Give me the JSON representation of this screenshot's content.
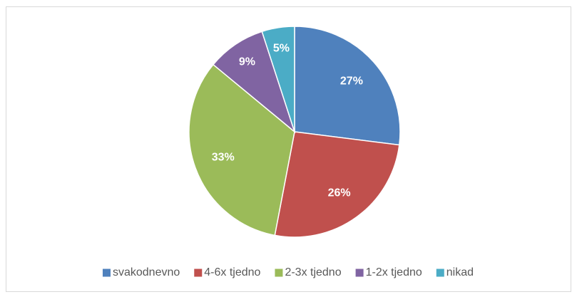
{
  "chart_data": {
    "type": "pie",
    "categories": [
      "svakodnevno",
      "4-6x tjedno",
      "2-3x tjedno",
      "1-2x tjedno",
      "nikad"
    ],
    "values": [
      27,
      26,
      33,
      9,
      5
    ],
    "value_labels": [
      "27%",
      "26%",
      "33%",
      "9%",
      "5%"
    ],
    "colors": [
      "#4f81bd",
      "#c0504d",
      "#9bbb59",
      "#8064a2",
      "#4bacc6"
    ],
    "legend": "bottom"
  }
}
